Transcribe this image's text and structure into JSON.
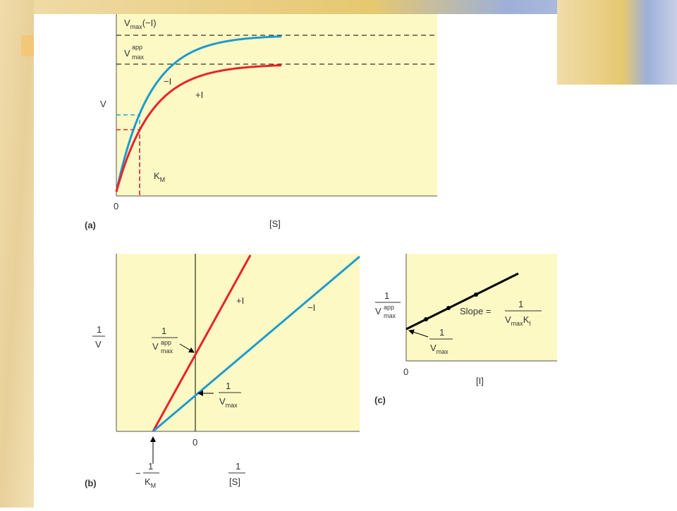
{
  "panel_a": {
    "label": "(a)",
    "y_label": "V",
    "x_label": "[S]",
    "origin": "0",
    "vmax_label": {
      "main": "V",
      "sub": "max",
      "suffix": "(−I)"
    },
    "vmax_app_label": {
      "main": "V",
      "sup": "app",
      "sub": "max"
    },
    "km_label": {
      "main": "K",
      "sub": "M"
    },
    "curve_minus": "−I",
    "curve_plus": "+I"
  },
  "panel_b": {
    "label": "(b)",
    "origin": "0",
    "y_label": {
      "num": "1",
      "den": "V"
    },
    "x_label": {
      "num": "1",
      "den": "[S]"
    },
    "line_plus": "+I",
    "line_minus": "−I",
    "intercept_app": {
      "num": "1",
      "main": "V",
      "sup": "app",
      "sub": "max"
    },
    "intercept_vmax": {
      "num": "1",
      "main": "V",
      "sub": "max"
    },
    "x_intercept": {
      "prefix": "−",
      "num": "1",
      "main": "K",
      "sub": "M"
    }
  },
  "panel_c": {
    "label": "(c)",
    "origin": "0",
    "x_label": "[I]",
    "y_label": {
      "num": "1",
      "main": "V",
      "sup": "app",
      "sub": "max"
    },
    "slope": {
      "prefix": "Slope =",
      "num": "1",
      "main": "V",
      "sub": "max",
      "main2": "K",
      "sub2": "I"
    },
    "intercept": {
      "num": "1",
      "main": "V",
      "sub": "max"
    }
  }
}
